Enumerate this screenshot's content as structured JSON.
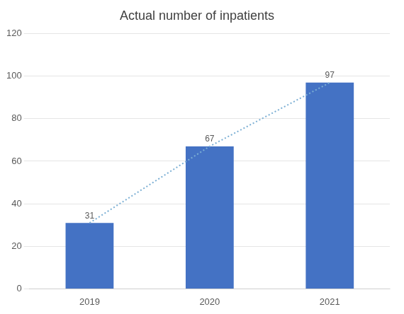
{
  "chart_data": {
    "type": "bar",
    "title": "Actual number of inpatients",
    "categories": [
      "2019",
      "2020",
      "2021"
    ],
    "series": [
      {
        "type": "bar",
        "color": "#4472C4",
        "values": [
          31,
          67,
          97
        ]
      },
      {
        "type": "line",
        "color": "#7BAFD4",
        "line_style": "dotted",
        "marker": "none",
        "values": [
          31,
          67,
          97
        ]
      }
    ],
    "data_labels": true,
    "ylim": [
      0,
      120
    ],
    "yticks": [
      0,
      20,
      40,
      60,
      80,
      100,
      120
    ],
    "grid": true
  }
}
